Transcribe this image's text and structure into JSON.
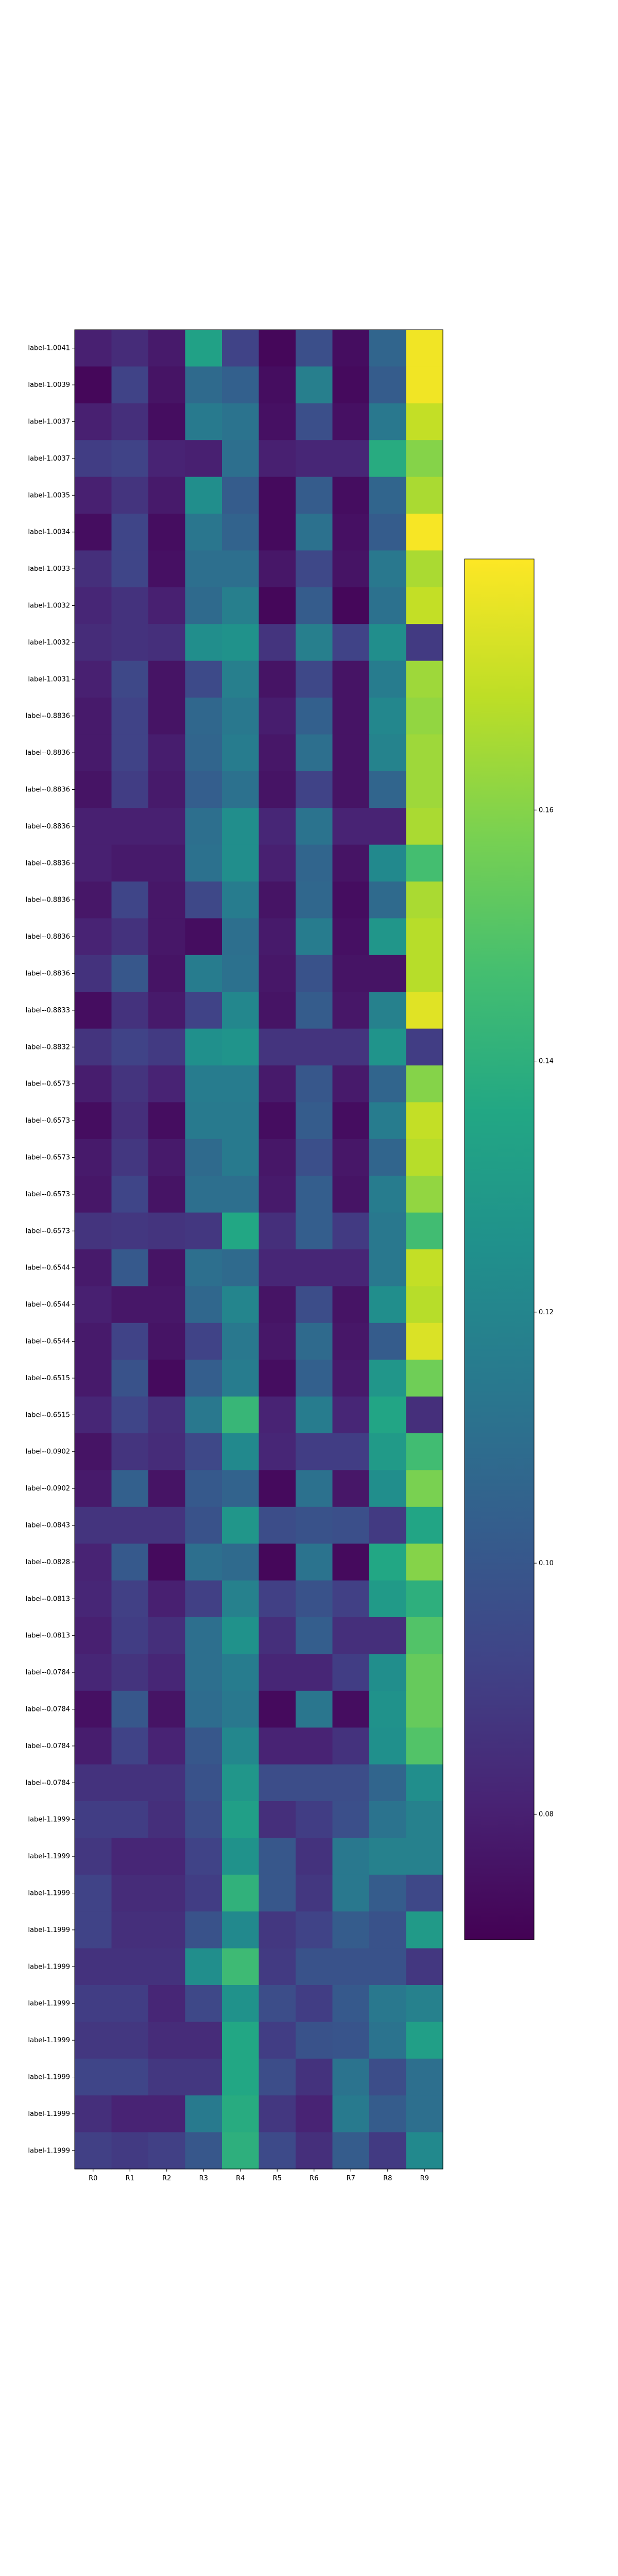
{
  "chart_data": {
    "type": "heatmap",
    "colormap": "viridis",
    "colorbar": {
      "position": "right",
      "range": [
        0.07,
        0.18
      ],
      "ticks": [
        0.08,
        0.1,
        0.12,
        0.14,
        0.16
      ],
      "tick_labels": [
        "0.08",
        "0.10",
        "0.12",
        "0.14",
        "0.16"
      ]
    },
    "x_labels": [
      "R0",
      "R1",
      "R2",
      "R3",
      "R4",
      "R5",
      "R6",
      "R7",
      "R8",
      "R9"
    ],
    "y_labels": [
      "label-1.0041",
      "label-1.0039",
      "label-1.0037",
      "label-1.0037",
      "label-1.0035",
      "label-1.0034",
      "label-1.0033",
      "label-1.0032",
      "label-1.0032",
      "label-1.0031",
      "label--0.8836",
      "label--0.8836",
      "label--0.8836",
      "label--0.8836",
      "label--0.8836",
      "label--0.8836",
      "label--0.8836",
      "label--0.8836",
      "label--0.8833",
      "label--0.8832",
      "label--0.6573",
      "label--0.6573",
      "label--0.6573",
      "label--0.6573",
      "label--0.6573",
      "label--0.6544",
      "label--0.6544",
      "label--0.6544",
      "label--0.6515",
      "label--0.6515",
      "label--0.0902",
      "label--0.0902",
      "label--0.0843",
      "label--0.0828",
      "label--0.0813",
      "label--0.0813",
      "label--0.0784",
      "label--0.0784",
      "label--0.0784",
      "label--0.0784",
      "label-1.1999",
      "label-1.1999",
      "label-1.1999",
      "label-1.1999",
      "label-1.1999",
      "label-1.1999",
      "label-1.1999",
      "label-1.1999",
      "label-1.1999",
      "label-1.1999"
    ],
    "values": [
      [
        0.08,
        0.084,
        0.078,
        0.133,
        0.092,
        0.072,
        0.097,
        0.074,
        0.106,
        0.178
      ],
      [
        0.072,
        0.092,
        0.076,
        0.108,
        0.104,
        0.074,
        0.117,
        0.073,
        0.102,
        0.178
      ],
      [
        0.08,
        0.085,
        0.074,
        0.115,
        0.112,
        0.075,
        0.097,
        0.075,
        0.114,
        0.17
      ],
      [
        0.09,
        0.092,
        0.081,
        0.08,
        0.11,
        0.08,
        0.082,
        0.082,
        0.138,
        0.16
      ],
      [
        0.08,
        0.087,
        0.078,
        0.124,
        0.102,
        0.073,
        0.102,
        0.074,
        0.106,
        0.166
      ],
      [
        0.074,
        0.093,
        0.074,
        0.113,
        0.105,
        0.073,
        0.111,
        0.075,
        0.102,
        0.179
      ],
      [
        0.085,
        0.093,
        0.075,
        0.11,
        0.11,
        0.077,
        0.094,
        0.076,
        0.114,
        0.166
      ],
      [
        0.082,
        0.086,
        0.08,
        0.108,
        0.117,
        0.072,
        0.102,
        0.072,
        0.111,
        0.17
      ],
      [
        0.084,
        0.086,
        0.085,
        0.124,
        0.126,
        0.087,
        0.117,
        0.092,
        0.124,
        0.089
      ],
      [
        0.08,
        0.094,
        0.076,
        0.095,
        0.117,
        0.076,
        0.094,
        0.076,
        0.116,
        0.164
      ],
      [
        0.078,
        0.092,
        0.076,
        0.107,
        0.114,
        0.079,
        0.104,
        0.076,
        0.121,
        0.162
      ],
      [
        0.078,
        0.092,
        0.079,
        0.106,
        0.116,
        0.077,
        0.11,
        0.076,
        0.119,
        0.164
      ],
      [
        0.076,
        0.09,
        0.078,
        0.103,
        0.111,
        0.076,
        0.092,
        0.076,
        0.106,
        0.164
      ],
      [
        0.08,
        0.08,
        0.08,
        0.11,
        0.124,
        0.082,
        0.112,
        0.081,
        0.081,
        0.166
      ],
      [
        0.08,
        0.078,
        0.078,
        0.111,
        0.124,
        0.08,
        0.106,
        0.076,
        0.122,
        0.147
      ],
      [
        0.077,
        0.093,
        0.077,
        0.094,
        0.116,
        0.076,
        0.107,
        0.074,
        0.108,
        0.166
      ],
      [
        0.081,
        0.086,
        0.077,
        0.074,
        0.11,
        0.078,
        0.116,
        0.075,
        0.128,
        0.168
      ],
      [
        0.086,
        0.1,
        0.076,
        0.116,
        0.111,
        0.077,
        0.098,
        0.076,
        0.076,
        0.168
      ],
      [
        0.074,
        0.086,
        0.078,
        0.092,
        0.121,
        0.076,
        0.102,
        0.077,
        0.118,
        0.175
      ],
      [
        0.087,
        0.092,
        0.089,
        0.125,
        0.127,
        0.087,
        0.087,
        0.087,
        0.127,
        0.09
      ],
      [
        0.079,
        0.087,
        0.081,
        0.116,
        0.116,
        0.078,
        0.1,
        0.078,
        0.106,
        0.16
      ],
      [
        0.074,
        0.085,
        0.074,
        0.115,
        0.115,
        0.074,
        0.102,
        0.074,
        0.116,
        0.17
      ],
      [
        0.078,
        0.088,
        0.078,
        0.108,
        0.115,
        0.077,
        0.097,
        0.077,
        0.106,
        0.168
      ],
      [
        0.077,
        0.093,
        0.076,
        0.11,
        0.11,
        0.078,
        0.103,
        0.076,
        0.116,
        0.162
      ],
      [
        0.087,
        0.088,
        0.087,
        0.088,
        0.136,
        0.085,
        0.103,
        0.089,
        0.114,
        0.146
      ],
      [
        0.078,
        0.101,
        0.076,
        0.11,
        0.108,
        0.082,
        0.082,
        0.082,
        0.114,
        0.17
      ],
      [
        0.08,
        0.077,
        0.077,
        0.107,
        0.12,
        0.076,
        0.096,
        0.076,
        0.124,
        0.168
      ],
      [
        0.078,
        0.092,
        0.076,
        0.092,
        0.114,
        0.077,
        0.108,
        0.077,
        0.102,
        0.174
      ],
      [
        0.078,
        0.098,
        0.073,
        0.103,
        0.116,
        0.074,
        0.104,
        0.078,
        0.128,
        0.156
      ],
      [
        0.082,
        0.093,
        0.085,
        0.114,
        0.143,
        0.081,
        0.116,
        0.082,
        0.135,
        0.085
      ],
      [
        0.076,
        0.087,
        0.084,
        0.094,
        0.122,
        0.082,
        0.09,
        0.09,
        0.13,
        0.146
      ],
      [
        0.078,
        0.104,
        0.076,
        0.101,
        0.105,
        0.073,
        0.111,
        0.077,
        0.124,
        0.158
      ],
      [
        0.087,
        0.087,
        0.087,
        0.098,
        0.128,
        0.096,
        0.098,
        0.097,
        0.089,
        0.135
      ],
      [
        0.081,
        0.101,
        0.073,
        0.11,
        0.108,
        0.072,
        0.112,
        0.073,
        0.136,
        0.16
      ],
      [
        0.082,
        0.091,
        0.08,
        0.091,
        0.118,
        0.091,
        0.098,
        0.091,
        0.13,
        0.14
      ],
      [
        0.08,
        0.09,
        0.085,
        0.11,
        0.126,
        0.085,
        0.103,
        0.085,
        0.085,
        0.15
      ],
      [
        0.082,
        0.087,
        0.082,
        0.11,
        0.116,
        0.082,
        0.082,
        0.09,
        0.124,
        0.154
      ],
      [
        0.075,
        0.1,
        0.076,
        0.109,
        0.114,
        0.073,
        0.113,
        0.074,
        0.126,
        0.154
      ],
      [
        0.079,
        0.092,
        0.081,
        0.1,
        0.121,
        0.081,
        0.081,
        0.086,
        0.125,
        0.15
      ],
      [
        0.086,
        0.086,
        0.086,
        0.098,
        0.128,
        0.096,
        0.096,
        0.096,
        0.106,
        0.124
      ],
      [
        0.09,
        0.09,
        0.085,
        0.096,
        0.132,
        0.085,
        0.09,
        0.097,
        0.112,
        0.118
      ],
      [
        0.088,
        0.082,
        0.082,
        0.092,
        0.126,
        0.1,
        0.086,
        0.114,
        0.118,
        0.118
      ],
      [
        0.092,
        0.084,
        0.084,
        0.09,
        0.141,
        0.1,
        0.088,
        0.114,
        0.102,
        0.094
      ],
      [
        0.092,
        0.085,
        0.085,
        0.098,
        0.122,
        0.088,
        0.092,
        0.102,
        0.098,
        0.13
      ],
      [
        0.086,
        0.086,
        0.086,
        0.124,
        0.145,
        0.089,
        0.098,
        0.098,
        0.098,
        0.088
      ],
      [
        0.09,
        0.09,
        0.082,
        0.094,
        0.126,
        0.096,
        0.09,
        0.101,
        0.114,
        0.118
      ],
      [
        0.088,
        0.088,
        0.084,
        0.084,
        0.136,
        0.09,
        0.098,
        0.099,
        0.112,
        0.132
      ],
      [
        0.093,
        0.093,
        0.088,
        0.088,
        0.136,
        0.096,
        0.086,
        0.112,
        0.096,
        0.11
      ],
      [
        0.085,
        0.081,
        0.081,
        0.115,
        0.138,
        0.088,
        0.081,
        0.115,
        0.102,
        0.11
      ],
      [
        0.091,
        0.089,
        0.091,
        0.1,
        0.14,
        0.095,
        0.085,
        0.102,
        0.089,
        0.122
      ]
    ]
  }
}
